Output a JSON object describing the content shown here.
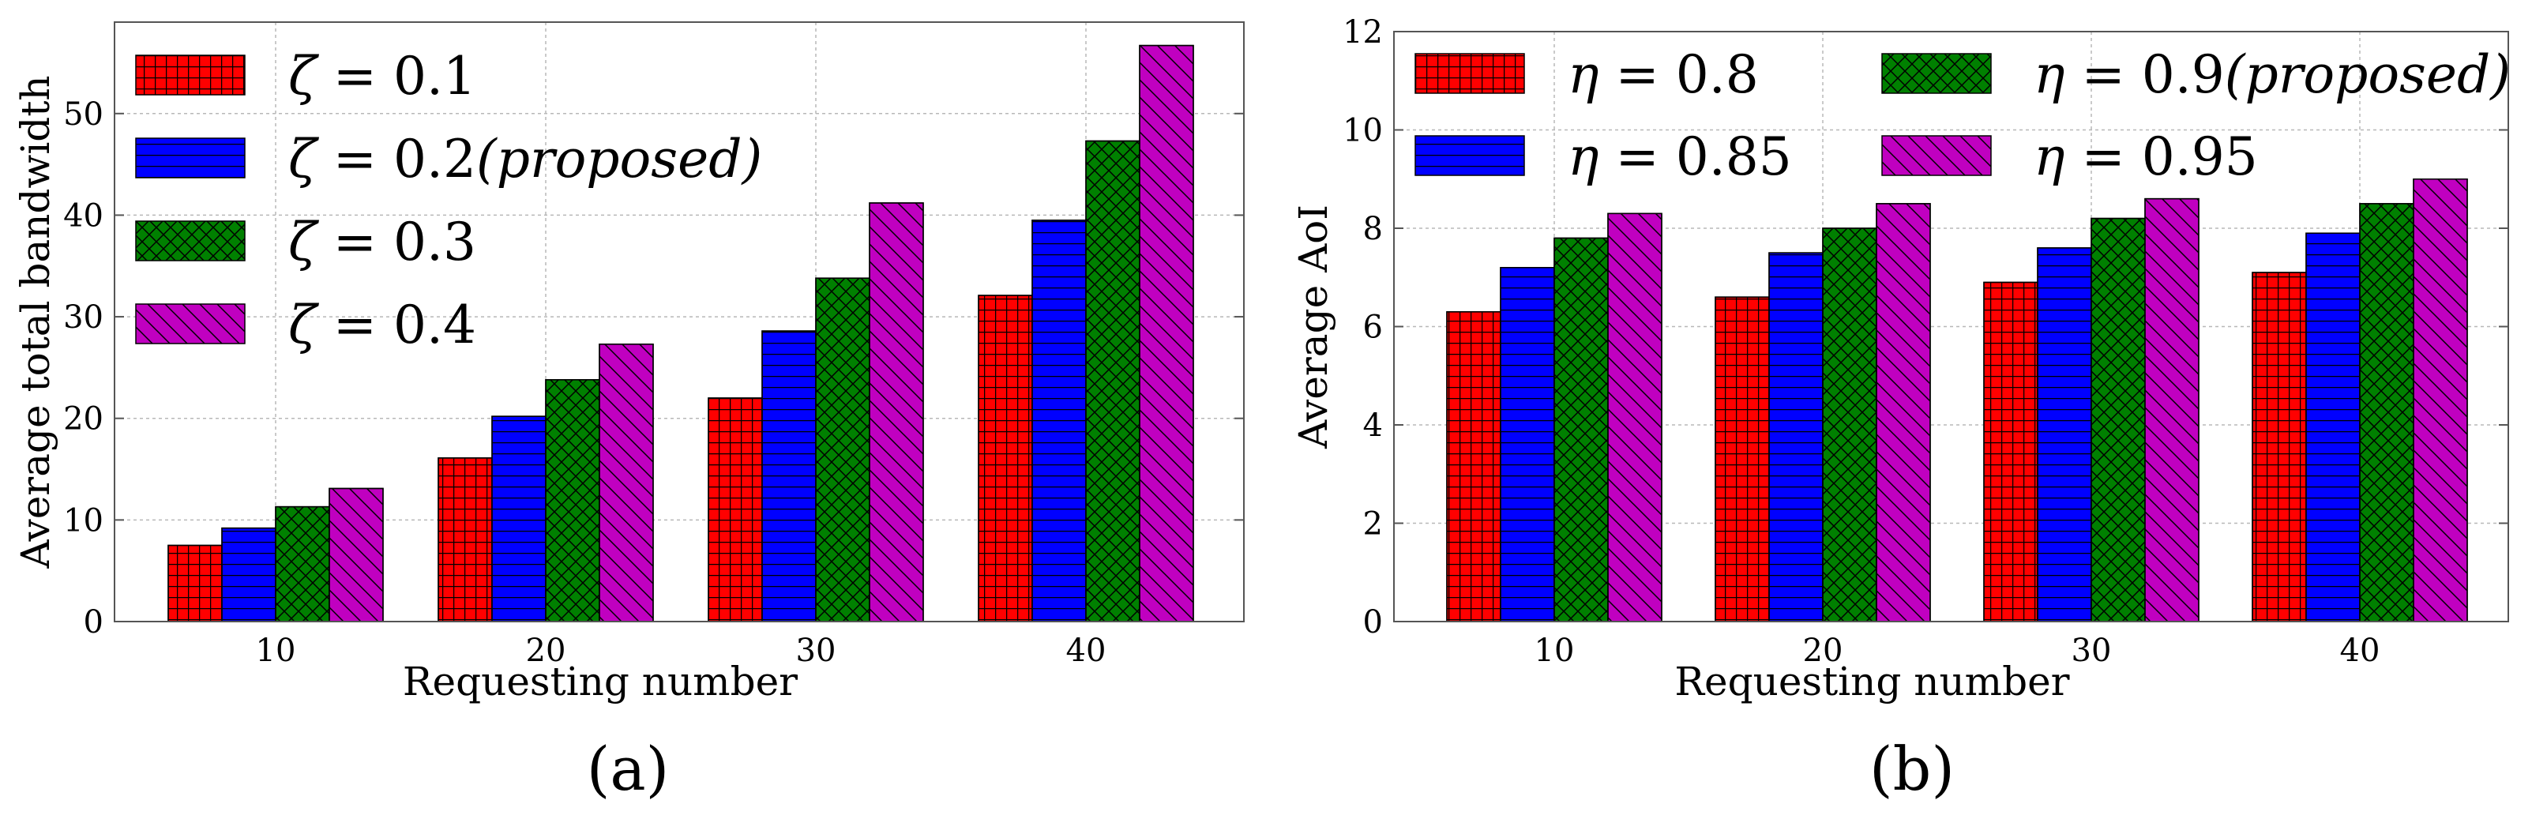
{
  "colors": {
    "red": "#ff0000",
    "blue": "#0000ff",
    "green": "#008000",
    "magenta": "#c000c0"
  },
  "chart_data": [
    {
      "type": "bar",
      "panel_label": "(a)",
      "xlabel": "Requesting number",
      "ylabel": "Average total bandwidth",
      "categories": [
        "10",
        "20",
        "30",
        "40"
      ],
      "ylim": [
        0,
        59
      ],
      "yticks": [
        0,
        10,
        20,
        30,
        40,
        50
      ],
      "grid": true,
      "legend_position": "top-left",
      "series": [
        {
          "name": "ζ = 0.1",
          "symbol": "ζ",
          "value_text": "0.1",
          "suffix": "",
          "color": "#ff0000",
          "hatch": "grid",
          "values": [
            7.5,
            16.1,
            22.0,
            32.1
          ]
        },
        {
          "name": "ζ = 0.2(proposed)",
          "symbol": "ζ",
          "value_text": "0.2",
          "suffix": "(proposed)",
          "color": "#0000ff",
          "hatch": "hline",
          "values": [
            9.2,
            20.2,
            28.6,
            39.5
          ]
        },
        {
          "name": "ζ = 0.3",
          "symbol": "ζ",
          "value_text": "0.3",
          "suffix": "",
          "color": "#008000",
          "hatch": "cross",
          "values": [
            11.3,
            23.8,
            33.8,
            47.3
          ]
        },
        {
          "name": "ζ = 0.4",
          "symbol": "ζ",
          "value_text": "0.4",
          "suffix": "",
          "color": "#c000c0",
          "hatch": "diag",
          "values": [
            13.1,
            27.3,
            41.2,
            56.7
          ]
        }
      ]
    },
    {
      "type": "bar",
      "panel_label": "(b)",
      "xlabel": "Requesting number",
      "ylabel": "Average AoI",
      "categories": [
        "10",
        "20",
        "30",
        "40"
      ],
      "ylim": [
        0,
        12
      ],
      "yticks": [
        0,
        2,
        4,
        6,
        8,
        10,
        12
      ],
      "grid": true,
      "legend_position": "top (two columns)",
      "series": [
        {
          "name": "η = 0.8",
          "symbol": "η",
          "value_text": "0.8",
          "suffix": "",
          "color": "#ff0000",
          "hatch": "grid",
          "values": [
            6.3,
            6.6,
            6.9,
            7.1
          ]
        },
        {
          "name": "η = 0.85",
          "symbol": "η",
          "value_text": "0.85",
          "suffix": "",
          "color": "#0000ff",
          "hatch": "hline",
          "values": [
            7.2,
            7.5,
            7.6,
            7.9
          ]
        },
        {
          "name": "η = 0.9(proposed)",
          "symbol": "η",
          "value_text": "0.9",
          "suffix": "(proposed)",
          "color": "#008000",
          "hatch": "cross",
          "values": [
            7.8,
            8.0,
            8.2,
            8.5
          ]
        },
        {
          "name": "η = 0.95",
          "symbol": "η",
          "value_text": "0.95",
          "suffix": "",
          "color": "#c000c0",
          "hatch": "diag",
          "values": [
            8.3,
            8.5,
            8.6,
            9.0
          ]
        }
      ]
    }
  ]
}
